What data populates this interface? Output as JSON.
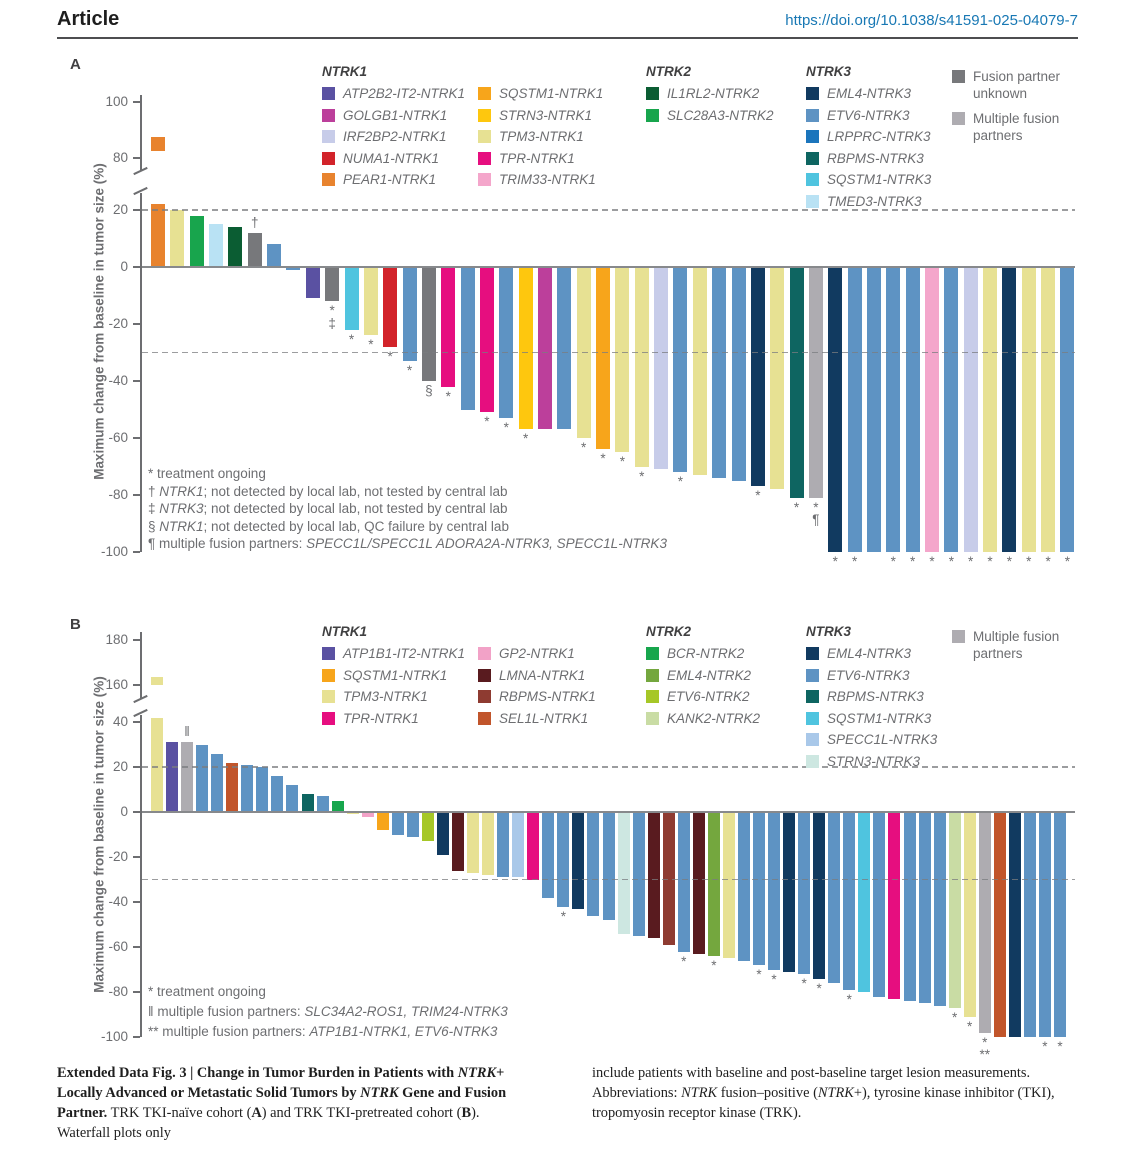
{
  "header": {
    "article_label": "Article",
    "doi": "https://doi.org/10.1038/s41591-025-04079-7"
  },
  "palette": {
    "ATP2B2-IT2-NTRK1": "#5a51a2",
    "GOLGB1-NTRK1": "#bc3f9b",
    "IRF2BP2-NTRK1": "#c7cce9",
    "NUMA1-NTRK1": "#d2232a",
    "PEAR1-NTRK1": "#e8832e",
    "SQSTM1-NTRK1": "#f7a51b",
    "STRN3-NTRK1": "#fec70e",
    "TPM3-NTRK1": "#e7e193",
    "TPR-NTRK1": "#e60e7f",
    "TRIM33-NTRK1": "#f4a6cb",
    "IL1RL2-NTRK2": "#0b5d33",
    "SLC28A3-NTRK2": "#18a54d",
    "BCR-NTRK2": "#17a64d",
    "EML4-NTRK2": "#74a73e",
    "ETV6-NTRK2": "#a6c727",
    "KANK2-NTRK2": "#c9dca4",
    "EML4-NTRK3": "#113a60",
    "ETV6-NTRK3": "#5e93c3",
    "LRPPRC-NTRK3": "#1b75bc",
    "RBPMS-NTRK3": "#0e6561",
    "SQSTM1-NTRK3": "#4fc4df",
    "TMED3-NTRK3": "#b9e2f4",
    "SPECC1L-NTRK3": "#a9c8e9",
    "STRN3-NTRK3": "#cde7e1",
    "ATP1B1-IT2-NTRK1": "#5a51a2",
    "GP2-NTRK1": "#f2a2c7",
    "LMNA-NTRK1": "#591b1f",
    "RBPMS-NTRK1": "#8e3b31",
    "SEL1L-NTRK1": "#c1552b",
    "fusion-partner-unknown": "#77787b",
    "multiple-fusion-partners": "#aeacb1"
  },
  "chart_data": [
    {
      "id": "A",
      "type": "bar",
      "panel_label": "A",
      "ylabel": "Maximum change from baseline in tumor size (%)",
      "yticks_upper": [
        100,
        80
      ],
      "yticks_lower": [
        20,
        0,
        -20,
        -40,
        -60,
        -80,
        -100
      ],
      "ylim": [
        -100,
        100
      ],
      "axis_break": true,
      "reference_lines": [
        20,
        -30
      ],
      "grid": false,
      "legend_position": "top",
      "legend": {
        "groups": [
          {
            "title": "NTRK1",
            "columns": [
              [
                "ATP2B2-IT2-NTRK1",
                "GOLGB1-NTRK1",
                "IRF2BP2-NTRK1",
                "NUMA1-NTRK1",
                "PEAR1-NTRK1"
              ],
              [
                "SQSTM1-NTRK1",
                "STRN3-NTRK1",
                "TPM3-NTRK1",
                "TPR-NTRK1",
                "TRIM33-NTRK1"
              ]
            ]
          },
          {
            "title": "NTRK2",
            "columns": [
              [
                "IL1RL2-NTRK2",
                "SLC28A3-NTRK2"
              ]
            ]
          },
          {
            "title": "NTRK3",
            "columns": [
              [
                "EML4-NTRK3",
                "ETV6-NTRK3",
                "LRPPRC-NTRK3",
                "RBPMS-NTRK3",
                "SQSTM1-NTRK3",
                "TMED3-NTRK3"
              ]
            ]
          }
        ],
        "extras": [
          {
            "label": "Fusion partner unknown",
            "color": "fusion-partner-unknown"
          },
          {
            "label": "Multiple fusion partners",
            "color": "multiple-fusion-partners"
          }
        ]
      },
      "bars": [
        {
          "v": 85,
          "c": "PEAR1-NTRK1",
          "broken": true
        },
        {
          "v": 20,
          "c": "TPM3-NTRK1"
        },
        {
          "v": 18,
          "c": "SLC28A3-NTRK2"
        },
        {
          "v": 15,
          "c": "TMED3-NTRK3"
        },
        {
          "v": 14,
          "c": "IL1RL2-NTRK2"
        },
        {
          "v": 12,
          "c": "fusion-partner-unknown",
          "above": "†"
        },
        {
          "v": 8,
          "c": "ETV6-NTRK3"
        },
        {
          "v": -1,
          "c": "ETV6-NTRK3"
        },
        {
          "v": -11,
          "c": "ATP2B2-IT2-NTRK1"
        },
        {
          "v": -12,
          "c": "fusion-partner-unknown",
          "below": [
            "*",
            "‡"
          ]
        },
        {
          "v": -22,
          "c": "SQSTM1-NTRK3",
          "below": [
            "*"
          ]
        },
        {
          "v": -24,
          "c": "TPM3-NTRK1",
          "below": [
            "*"
          ]
        },
        {
          "v": -28,
          "c": "NUMA1-NTRK1",
          "below": [
            "*"
          ]
        },
        {
          "v": -33,
          "c": "ETV6-NTRK3",
          "below": [
            "*"
          ]
        },
        {
          "v": -40,
          "c": "fusion-partner-unknown",
          "below": [
            "§"
          ]
        },
        {
          "v": -42,
          "c": "TPR-NTRK1",
          "below": [
            "*"
          ]
        },
        {
          "v": -50,
          "c": "ETV6-NTRK3"
        },
        {
          "v": -51,
          "c": "TPR-NTRK1",
          "below": [
            "*"
          ]
        },
        {
          "v": -53,
          "c": "ETV6-NTRK3",
          "below": [
            "*"
          ]
        },
        {
          "v": -57,
          "c": "STRN3-NTRK1",
          "below": [
            "*"
          ]
        },
        {
          "v": -57,
          "c": "GOLGB1-NTRK1"
        },
        {
          "v": -57,
          "c": "ETV6-NTRK3"
        },
        {
          "v": -60,
          "c": "TPM3-NTRK1",
          "below": [
            "*"
          ]
        },
        {
          "v": -64,
          "c": "SQSTM1-NTRK1",
          "below": [
            "*"
          ]
        },
        {
          "v": -65,
          "c": "TPM3-NTRK1",
          "below": [
            "*"
          ]
        },
        {
          "v": -70,
          "c": "TPM3-NTRK1",
          "below": [
            "*"
          ]
        },
        {
          "v": -71,
          "c": "IRF2BP2-NTRK1"
        },
        {
          "v": -72,
          "c": "ETV6-NTRK3",
          "below": [
            "*"
          ]
        },
        {
          "v": -73,
          "c": "TPM3-NTRK1"
        },
        {
          "v": -74,
          "c": "ETV6-NTRK3"
        },
        {
          "v": -75,
          "c": "ETV6-NTRK3"
        },
        {
          "v": -77,
          "c": "EML4-NTRK3",
          "below": [
            "*"
          ]
        },
        {
          "v": -78,
          "c": "TPM3-NTRK1"
        },
        {
          "v": -81,
          "c": "RBPMS-NTRK3",
          "below": [
            "*"
          ]
        },
        {
          "v": -81,
          "c": "multiple-fusion-partners",
          "below": [
            "*",
            "¶"
          ]
        },
        {
          "v": -100,
          "c": "EML4-NTRK3",
          "below": [
            "*"
          ]
        },
        {
          "v": -100,
          "c": "ETV6-NTRK3",
          "below": [
            "*"
          ]
        },
        {
          "v": -100,
          "c": "ETV6-NTRK3"
        },
        {
          "v": -100,
          "c": "ETV6-NTRK3",
          "below": [
            "*"
          ]
        },
        {
          "v": -100,
          "c": "ETV6-NTRK3",
          "below": [
            "*"
          ]
        },
        {
          "v": -100,
          "c": "TRIM33-NTRK1",
          "below": [
            "*"
          ]
        },
        {
          "v": -100,
          "c": "ETV6-NTRK3",
          "below": [
            "*"
          ]
        },
        {
          "v": -100,
          "c": "IRF2BP2-NTRK1",
          "below": [
            "*"
          ]
        },
        {
          "v": -100,
          "c": "TPM3-NTRK1",
          "below": [
            "*"
          ]
        },
        {
          "v": -100,
          "c": "EML4-NTRK3",
          "below": [
            "*"
          ]
        },
        {
          "v": -100,
          "c": "TPM3-NTRK1",
          "below": [
            "*"
          ]
        },
        {
          "v": -100,
          "c": "TPM3-NTRK1",
          "below": [
            "*"
          ]
        },
        {
          "v": -100,
          "c": "ETV6-NTRK3",
          "below": [
            "*"
          ]
        }
      ],
      "footnotes": [
        [
          {
            "t": "* treatment ongoing"
          }
        ],
        [
          {
            "t": "† "
          },
          {
            "t": "NTRK1",
            "i": 1
          },
          {
            "t": "; not detected by local lab, not tested by central lab"
          }
        ],
        [
          {
            "t": "‡ "
          },
          {
            "t": "NTRK3",
            "i": 1
          },
          {
            "t": "; not detected by local lab, not tested by central lab"
          }
        ],
        [
          {
            "t": "§ "
          },
          {
            "t": "NTRK1",
            "i": 1
          },
          {
            "t": "; not detected by local lab, QC failure by central lab"
          }
        ],
        [
          {
            "t": "¶ multiple fusion partners: "
          },
          {
            "t": "SPECC1L/SPECC1L ADORA2A-NTRK3, SPECC1L-NTRK3",
            "i": 1
          }
        ]
      ]
    },
    {
      "id": "B",
      "type": "bar",
      "panel_label": "B",
      "ylabel": "Maximum change from baseline in tumor size (%)",
      "yticks_upper": [
        180,
        160
      ],
      "yticks_lower": [
        40,
        20,
        0,
        -20,
        -40,
        -60,
        -80,
        -100
      ],
      "ylim": [
        -100,
        180
      ],
      "axis_break": true,
      "reference_lines": [
        20,
        -30
      ],
      "grid": false,
      "legend_position": "top",
      "legend": {
        "groups": [
          {
            "title": "NTRK1",
            "columns": [
              [
                "ATP1B1-IT2-NTRK1",
                "SQSTM1-NTRK1",
                "TPM3-NTRK1",
                "TPR-NTRK1"
              ],
              [
                "GP2-NTRK1",
                "LMNA-NTRK1",
                "RBPMS-NTRK1",
                "SEL1L-NTRK1"
              ]
            ]
          },
          {
            "title": "NTRK2",
            "columns": [
              [
                "BCR-NTRK2",
                "EML4-NTRK2",
                "ETV6-NTRK2",
                "KANK2-NTRK2"
              ]
            ]
          },
          {
            "title": "NTRK3",
            "columns": [
              [
                "EML4-NTRK3",
                "ETV6-NTRK3",
                "RBPMS-NTRK3",
                "SQSTM1-NTRK3",
                "SPECC1L-NTRK3",
                "STRN3-NTRK3"
              ]
            ]
          }
        ],
        "extras": [
          {
            "label": "Multiple fusion partners",
            "color": "multiple-fusion-partners"
          }
        ]
      },
      "bars": [
        {
          "v": 162,
          "c": "TPM3-NTRK1",
          "broken": true
        },
        {
          "v": 31,
          "c": "ATP1B1-IT2-NTRK1"
        },
        {
          "v": 31,
          "c": "multiple-fusion-partners",
          "above": "‖"
        },
        {
          "v": 30,
          "c": "ETV6-NTRK3"
        },
        {
          "v": 26,
          "c": "ETV6-NTRK3"
        },
        {
          "v": 22,
          "c": "SEL1L-NTRK1"
        },
        {
          "v": 21,
          "c": "ETV6-NTRK3"
        },
        {
          "v": 20,
          "c": "ETV6-NTRK3"
        },
        {
          "v": 16,
          "c": "ETV6-NTRK3"
        },
        {
          "v": 12,
          "c": "ETV6-NTRK3"
        },
        {
          "v": 8,
          "c": "RBPMS-NTRK3"
        },
        {
          "v": 7,
          "c": "ETV6-NTRK3"
        },
        {
          "v": 5,
          "c": "BCR-NTRK2"
        },
        {
          "v": -1,
          "c": "TPM3-NTRK1"
        },
        {
          "v": -2,
          "c": "GP2-NTRK1"
        },
        {
          "v": -8,
          "c": "SQSTM1-NTRK1"
        },
        {
          "v": -10,
          "c": "ETV6-NTRK3"
        },
        {
          "v": -11,
          "c": "ETV6-NTRK3"
        },
        {
          "v": -13,
          "c": "ETV6-NTRK2"
        },
        {
          "v": -19,
          "c": "EML4-NTRK3"
        },
        {
          "v": -26,
          "c": "LMNA-NTRK1"
        },
        {
          "v": -27,
          "c": "TPM3-NTRK1"
        },
        {
          "v": -28,
          "c": "TPM3-NTRK1"
        },
        {
          "v": -29,
          "c": "ETV6-NTRK3"
        },
        {
          "v": -29,
          "c": "SPECC1L-NTRK3"
        },
        {
          "v": -30,
          "c": "TPR-NTRK1"
        },
        {
          "v": -38,
          "c": "ETV6-NTRK3"
        },
        {
          "v": -42,
          "c": "ETV6-NTRK3",
          "below": [
            "*"
          ]
        },
        {
          "v": -43,
          "c": "EML4-NTRK3"
        },
        {
          "v": -46,
          "c": "ETV6-NTRK3"
        },
        {
          "v": -48,
          "c": "ETV6-NTRK3"
        },
        {
          "v": -54,
          "c": "STRN3-NTRK3"
        },
        {
          "v": -55,
          "c": "ETV6-NTRK3"
        },
        {
          "v": -56,
          "c": "LMNA-NTRK1"
        },
        {
          "v": -59,
          "c": "RBPMS-NTRK1"
        },
        {
          "v": -62,
          "c": "ETV6-NTRK3",
          "below": [
            "*"
          ]
        },
        {
          "v": -63,
          "c": "LMNA-NTRK1"
        },
        {
          "v": -64,
          "c": "EML4-NTRK2",
          "below": [
            "*"
          ]
        },
        {
          "v": -65,
          "c": "TPM3-NTRK1"
        },
        {
          "v": -66,
          "c": "ETV6-NTRK3"
        },
        {
          "v": -68,
          "c": "ETV6-NTRK3",
          "below": [
            "*"
          ]
        },
        {
          "v": -70,
          "c": "ETV6-NTRK3",
          "below": [
            "*"
          ]
        },
        {
          "v": -71,
          "c": "EML4-NTRK3"
        },
        {
          "v": -72,
          "c": "ETV6-NTRK3",
          "below": [
            "*"
          ]
        },
        {
          "v": -74,
          "c": "EML4-NTRK3",
          "below": [
            "*"
          ]
        },
        {
          "v": -76,
          "c": "ETV6-NTRK3"
        },
        {
          "v": -79,
          "c": "ETV6-NTRK3",
          "below": [
            "*"
          ]
        },
        {
          "v": -80,
          "c": "SQSTM1-NTRK3"
        },
        {
          "v": -82,
          "c": "ETV6-NTRK3"
        },
        {
          "v": -83,
          "c": "TPR-NTRK1"
        },
        {
          "v": -84,
          "c": "ETV6-NTRK3"
        },
        {
          "v": -85,
          "c": "ETV6-NTRK3"
        },
        {
          "v": -86,
          "c": "ETV6-NTRK3"
        },
        {
          "v": -87,
          "c": "KANK2-NTRK2",
          "below": [
            "*"
          ]
        },
        {
          "v": -91,
          "c": "TPM3-NTRK1",
          "below": [
            "*"
          ]
        },
        {
          "v": -98,
          "c": "multiple-fusion-partners",
          "below": [
            "*",
            "**"
          ]
        },
        {
          "v": -100,
          "c": "SEL1L-NTRK1"
        },
        {
          "v": -100,
          "c": "EML4-NTRK3"
        },
        {
          "v": -100,
          "c": "ETV6-NTRK3"
        },
        {
          "v": -100,
          "c": "ETV6-NTRK3",
          "below": [
            "*"
          ]
        },
        {
          "v": -100,
          "c": "ETV6-NTRK3",
          "below": [
            "*"
          ]
        }
      ],
      "footnotes": [
        [
          {
            "t": "* treatment ongoing"
          }
        ],
        [
          {
            "t": "‖ multiple fusion partners: "
          },
          {
            "t": "SLC34A2-ROS1, TRIM24-NTRK3",
            "i": 1
          }
        ],
        [
          {
            "t": "** multiple fusion partners: "
          },
          {
            "t": "ATP1B1-NTRK1, ETV6-NTRK3",
            "i": 1
          }
        ]
      ]
    }
  ],
  "caption": {
    "left": [
      {
        "t": "Extended Data Fig. 3 | Change in Tumor Burden in Patients with ",
        "b": 1
      },
      {
        "t": "NTRK",
        "b": 1,
        "i": 1
      },
      {
        "t": "+ Locally Advanced or Metastatic Solid Tumors by ",
        "b": 1
      },
      {
        "t": "NTRK",
        "b": 1,
        "i": 1
      },
      {
        "t": " Gene and Fusion Partner.",
        "b": 1
      },
      {
        "t": " TRK TKI-naïve cohort ("
      },
      {
        "t": "A",
        "b": 1
      },
      {
        "t": ") and TRK TKI-pretreated cohort ("
      },
      {
        "t": "B",
        "b": 1
      },
      {
        "t": "). Waterfall plots only"
      }
    ],
    "right": [
      {
        "t": "include patients with baseline and post-baseline target lesion measurements. Abbreviations: "
      },
      {
        "t": "NTRK",
        "i": 1
      },
      {
        "t": " fusion–positive ("
      },
      {
        "t": "NTRK",
        "i": 1
      },
      {
        "t": "+), tyrosine kinase inhibitor (TKI), tropomyosin receptor kinase (TRK)."
      }
    ]
  }
}
